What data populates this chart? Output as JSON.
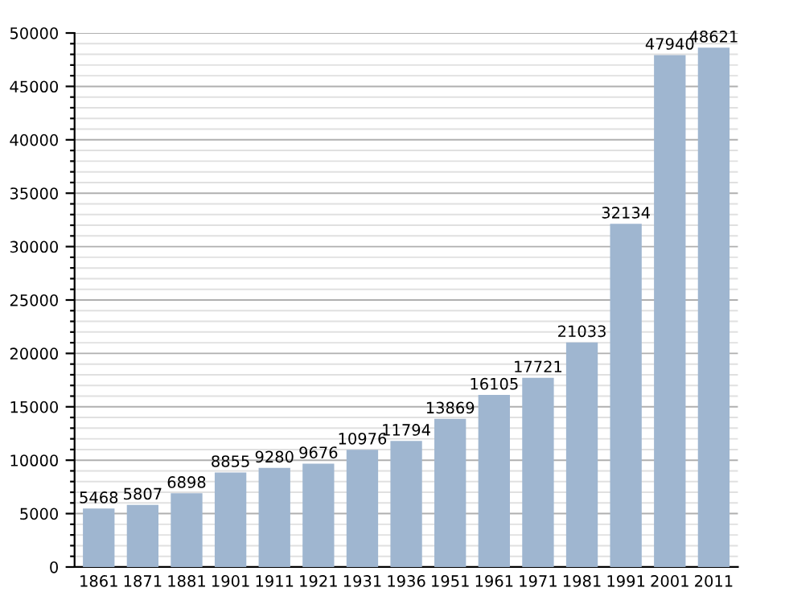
{
  "chart_data": {
    "type": "bar",
    "categories": [
      "1861",
      "1871",
      "1881",
      "1901",
      "1911",
      "1921",
      "1931",
      "1936",
      "1951",
      "1961",
      "1971",
      "1981",
      "1991",
      "2001",
      "2011"
    ],
    "values": [
      5468,
      5807,
      6898,
      8855,
      9280,
      9676,
      10976,
      11794,
      13869,
      16105,
      17721,
      21033,
      32134,
      47940,
      48621
    ],
    "color": "#9fb6d0",
    "data_labels": true,
    "ylim": [
      0,
      50000
    ],
    "yticks": [
      0,
      {
        "value": 1000,
        "label": null
      },
      {
        "value": 2000,
        "label": null
      },
      {
        "value": 3000,
        "label": null
      },
      {
        "value": 4000,
        "label": null
      },
      5000,
      {
        "value": 6000,
        "label": null
      },
      {
        "value": 7000,
        "label": null
      },
      {
        "value": 8000,
        "label": null
      },
      {
        "value": 9000,
        "label": null
      },
      10000,
      {
        "value": 11000,
        "label": null
      },
      {
        "value": 12000,
        "label": null
      },
      {
        "value": 13000,
        "label": null
      },
      {
        "value": 14000,
        "label": null
      },
      15000,
      {
        "value": 16000,
        "label": null
      },
      {
        "value": 17000,
        "label": null
      },
      {
        "value": 18000,
        "label": null
      },
      {
        "value": 19000,
        "label": null
      },
      20000,
      {
        "value": 21000,
        "label": null
      },
      {
        "value": 22000,
        "label": null
      },
      {
        "value": 23000,
        "label": null
      },
      {
        "value": 24000,
        "label": null
      },
      25000,
      {
        "value": 26000,
        "label": null
      },
      {
        "value": 27000,
        "label": null
      },
      {
        "value": 28000,
        "label": null
      },
      {
        "value": 29000,
        "label": null
      },
      30000,
      {
        "value": 31000,
        "label": null
      },
      {
        "value": 32000,
        "label": null
      },
      {
        "value": 33000,
        "label": null
      },
      {
        "value": 34000,
        "label": null
      },
      35000,
      {
        "value": 36000,
        "label": null
      },
      {
        "value": 37000,
        "label": null
      },
      {
        "value": 38000,
        "label": null
      },
      {
        "value": 39000,
        "label": null
      },
      40000,
      {
        "value": 41000,
        "label": null
      },
      {
        "value": 42000,
        "label": null
      },
      {
        "value": 43000,
        "label": null
      },
      {
        "value": 44000,
        "label": null
      },
      45000,
      {
        "value": 46000,
        "label": null
      },
      {
        "value": 47000,
        "label": null
      },
      {
        "value": 48000,
        "label": null
      },
      {
        "value": 49000,
        "label": null
      },
      50000
    ],
    "grid": "y"
  }
}
